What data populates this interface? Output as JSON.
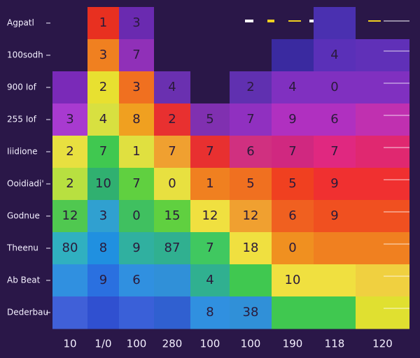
{
  "chart_data": {
    "type": "heatmap",
    "rows": [
      "Agpatl",
      "100sodh",
      "900 Iof",
      "255 Iof",
      "Iiidione",
      "Ooidiadi'",
      "Godnue",
      "Theenu",
      "Ab Beat",
      "Dederbau"
    ],
    "columns": [
      {
        "label": "10",
        "values": [
          null,
          null,
          null,
          3,
          2,
          2,
          12,
          80,
          null,
          null
        ],
        "colors": [
          null,
          null,
          "#7a2ab8",
          "#a83ad0",
          "#e8e040",
          "#b8e040",
          "#50c850",
          "#30b0c0",
          "#3090e0",
          "#4060d8"
        ]
      },
      {
        "label": "1/0",
        "values": [
          1,
          3,
          2,
          4,
          7,
          10,
          3,
          8,
          9,
          null
        ],
        "colors": [
          "#e83020",
          "#f08020",
          "#e8e030",
          "#d8e040",
          "#40c850",
          "#30b070",
          "#30a0d0",
          "#2090e0",
          "#2a70e0",
          "#3050d0"
        ]
      },
      {
        "label": "100",
        "values": [
          3,
          7,
          3,
          8,
          1,
          7,
          0,
          9,
          6,
          null
        ],
        "colors": [
          "#6a2ab0",
          "#9030b8",
          "#f07020",
          "#f0a020",
          "#e0e040",
          "#60d040",
          "#40c060",
          "#30b0a0",
          "#3090e0",
          "#3a60d8"
        ]
      },
      {
        "label": "280",
        "values": [
          null,
          null,
          4,
          2,
          7,
          0,
          15,
          87,
          null,
          null
        ],
        "colors": [
          null,
          null,
          "#6a30b0",
          "#e83030",
          "#f0a030",
          "#e8e040",
          "#60d040",
          "#30b090",
          "#3090d8",
          "#3060d0"
        ]
      },
      {
        "label": "100",
        "values": [
          null,
          null,
          null,
          5,
          7,
          1,
          12,
          7,
          4,
          8
        ],
        "colors": [
          null,
          null,
          null,
          "#8030b0",
          "#e83030",
          "#f08020",
          "#f0e040",
          "#40c860",
          "#30b090",
          "#3090e0"
        ]
      },
      {
        "label": "100",
        "values": [
          null,
          null,
          2,
          7,
          6,
          5,
          12,
          18,
          null,
          38
        ],
        "colors": [
          null,
          null,
          "#6030b0",
          "#9030c0",
          "#d03080",
          "#f07020",
          "#f0a030",
          "#f0e040",
          "#40c850",
          "#3090d8"
        ]
      },
      {
        "label": "190",
        "values": [
          null,
          null,
          4,
          9,
          7,
          5,
          6,
          0,
          10,
          null
        ],
        "colors": [
          null,
          "#3a2aa0",
          "#8030c0",
          "#b030c0",
          "#d02880",
          "#f04020",
          "#f06020",
          "#f09020",
          "#f0e040",
          "#40c850"
        ]
      },
      {
        "label": "118",
        "values": [
          null,
          4,
          0,
          6,
          7,
          9,
          9,
          null,
          null,
          null
        ],
        "colors": [
          "#4a30b0",
          "#5a30b8",
          "#8030c0",
          "#b030c0",
          "#e02880",
          "#f03030",
          "#f05020",
          "#f08020",
          "#f0e040",
          "#40c850"
        ]
      },
      {
        "label": "120",
        "values": [
          null,
          null,
          null,
          null,
          null,
          null,
          null,
          null,
          null,
          null
        ],
        "colors": [
          null,
          "#6030b8",
          "#8030c0",
          "#c030b0",
          "#e02870",
          "#f03030",
          "#f05020",
          "#f08020",
          "#f0d040",
          "#e0e030"
        ]
      }
    ]
  }
}
